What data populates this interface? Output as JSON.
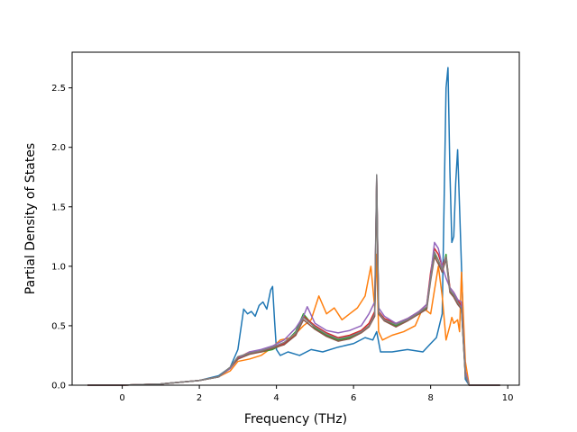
{
  "chart_data": {
    "type": "line",
    "title": "",
    "xlabel": "Frequency (THz)",
    "ylabel": "Partial Density of States",
    "xlim": [
      -1.3,
      10.3
    ],
    "ylim": [
      0.0,
      2.8
    ],
    "xticks": [
      0,
      2,
      4,
      6,
      8,
      10
    ],
    "xtick_labels": [
      "0",
      "2",
      "4",
      "6",
      "8",
      "10"
    ],
    "yticks": [
      0.0,
      0.5,
      1.0,
      1.5,
      2.0,
      2.5
    ],
    "ytick_labels": [
      "0.0",
      "0.5",
      "1.0",
      "1.5",
      "2.0",
      "2.5"
    ],
    "grid": false,
    "legend": "none",
    "series": [
      {
        "color": "#1f77b4",
        "x": [
          -0.9,
          0,
          1,
          2,
          2.5,
          2.8,
          3.0,
          3.15,
          3.25,
          3.35,
          3.45,
          3.55,
          3.65,
          3.75,
          3.85,
          3.9,
          3.95,
          4.0,
          4.1,
          4.3,
          4.6,
          4.9,
          5.2,
          5.6,
          6.0,
          6.3,
          6.5,
          6.6,
          6.7,
          7.0,
          7.4,
          7.8,
          8.0,
          8.15,
          8.3,
          8.4,
          8.45,
          8.5,
          8.55,
          8.6,
          8.65,
          8.7,
          8.75,
          8.8,
          8.85,
          8.9,
          9.0,
          9.8
        ],
        "y": [
          0,
          0.0,
          0.01,
          0.04,
          0.08,
          0.15,
          0.3,
          0.64,
          0.6,
          0.62,
          0.58,
          0.67,
          0.7,
          0.64,
          0.8,
          0.83,
          0.55,
          0.3,
          0.25,
          0.28,
          0.25,
          0.3,
          0.28,
          0.32,
          0.35,
          0.4,
          0.38,
          0.45,
          0.28,
          0.28,
          0.3,
          0.28,
          0.35,
          0.4,
          0.6,
          2.5,
          2.67,
          1.8,
          1.2,
          1.25,
          1.7,
          1.98,
          1.5,
          1.0,
          0.5,
          0.05,
          0,
          0
        ]
      },
      {
        "color": "#ff7f0e",
        "x": [
          -0.9,
          0,
          1,
          2,
          2.5,
          2.8,
          3.0,
          3.3,
          3.6,
          3.9,
          4.1,
          4.4,
          4.7,
          4.9,
          5.1,
          5.3,
          5.5,
          5.7,
          5.9,
          6.1,
          6.3,
          6.45,
          6.55,
          6.6,
          6.65,
          6.75,
          7.0,
          7.3,
          7.6,
          7.8,
          8.0,
          8.1,
          8.2,
          8.3,
          8.4,
          8.5,
          8.55,
          8.6,
          8.7,
          8.75,
          8.8,
          8.9,
          9.0,
          9.8
        ],
        "y": [
          0,
          0.0,
          0.01,
          0.04,
          0.07,
          0.12,
          0.2,
          0.22,
          0.25,
          0.32,
          0.38,
          0.4,
          0.5,
          0.55,
          0.75,
          0.6,
          0.65,
          0.55,
          0.6,
          0.65,
          0.75,
          1.0,
          0.65,
          1.1,
          0.45,
          0.38,
          0.42,
          0.45,
          0.5,
          0.65,
          0.6,
          0.8,
          1.0,
          0.75,
          0.38,
          0.5,
          0.57,
          0.52,
          0.55,
          0.45,
          0.95,
          0.2,
          0,
          0
        ]
      },
      {
        "color": "#2ca02c",
        "x": [
          -0.9,
          0,
          1,
          2,
          2.5,
          2.8,
          3.0,
          3.3,
          3.6,
          3.9,
          4.2,
          4.5,
          4.7,
          5.0,
          5.3,
          5.6,
          5.9,
          6.2,
          6.4,
          6.55,
          6.6,
          6.65,
          6.8,
          7.1,
          7.4,
          7.7,
          7.9,
          8.0,
          8.1,
          8.2,
          8.3,
          8.4,
          8.5,
          8.6,
          8.7,
          8.8,
          8.9,
          9.0,
          9.8
        ],
        "y": [
          0,
          0.0,
          0.01,
          0.04,
          0.07,
          0.15,
          0.22,
          0.27,
          0.28,
          0.3,
          0.35,
          0.45,
          0.6,
          0.48,
          0.42,
          0.38,
          0.4,
          0.45,
          0.5,
          0.6,
          1.72,
          0.6,
          0.55,
          0.5,
          0.55,
          0.6,
          0.65,
          0.9,
          1.1,
          1.05,
          0.95,
          1.1,
          0.8,
          0.75,
          0.7,
          0.65,
          0.1,
          0,
          0
        ]
      },
      {
        "color": "#d62728",
        "x": [
          -0.9,
          0,
          1,
          2,
          2.5,
          2.8,
          3.0,
          3.3,
          3.6,
          3.9,
          4.2,
          4.5,
          4.7,
          5.0,
          5.3,
          5.6,
          5.9,
          6.2,
          6.4,
          6.55,
          6.6,
          6.65,
          6.8,
          7.1,
          7.4,
          7.7,
          7.9,
          8.0,
          8.1,
          8.2,
          8.3,
          8.4,
          8.5,
          8.6,
          8.7,
          8.8,
          8.9,
          9.0,
          9.8
        ],
        "y": [
          0,
          0.0,
          0.01,
          0.04,
          0.07,
          0.15,
          0.23,
          0.28,
          0.28,
          0.32,
          0.35,
          0.42,
          0.58,
          0.5,
          0.44,
          0.4,
          0.42,
          0.46,
          0.52,
          0.62,
          1.74,
          0.62,
          0.56,
          0.52,
          0.56,
          0.62,
          0.68,
          0.95,
          1.15,
          1.1,
          1.0,
          1.08,
          0.82,
          0.78,
          0.72,
          0.66,
          0.1,
          0,
          0
        ]
      },
      {
        "color": "#9467bd",
        "x": [
          -0.9,
          0,
          1,
          2,
          2.5,
          2.8,
          3.0,
          3.3,
          3.6,
          3.9,
          4.2,
          4.5,
          4.7,
          4.8,
          5.0,
          5.3,
          5.6,
          5.9,
          6.2,
          6.4,
          6.55,
          6.6,
          6.65,
          6.8,
          7.1,
          7.4,
          7.7,
          7.9,
          8.0,
          8.1,
          8.2,
          8.3,
          8.4,
          8.5,
          8.6,
          8.7,
          8.8,
          8.9,
          9.0,
          9.8
        ],
        "y": [
          0,
          0.0,
          0.01,
          0.04,
          0.07,
          0.14,
          0.22,
          0.28,
          0.3,
          0.33,
          0.38,
          0.48,
          0.58,
          0.66,
          0.52,
          0.46,
          0.44,
          0.46,
          0.5,
          0.6,
          0.7,
          1.76,
          0.65,
          0.58,
          0.52,
          0.56,
          0.62,
          0.68,
          0.92,
          1.2,
          1.15,
          1.0,
          0.9,
          0.82,
          0.78,
          0.72,
          0.7,
          0.12,
          0,
          0
        ]
      },
      {
        "color": "#8c564b",
        "x": [
          -0.9,
          0,
          1,
          2,
          2.5,
          2.8,
          3.0,
          3.3,
          3.6,
          3.9,
          4.2,
          4.5,
          4.7,
          5.0,
          5.3,
          5.6,
          5.9,
          6.2,
          6.4,
          6.55,
          6.6,
          6.65,
          6.8,
          7.1,
          7.4,
          7.7,
          7.9,
          8.0,
          8.1,
          8.2,
          8.3,
          8.4,
          8.5,
          8.6,
          8.7,
          8.8,
          8.9,
          9.0,
          9.8
        ],
        "y": [
          0,
          0.0,
          0.01,
          0.04,
          0.07,
          0.15,
          0.22,
          0.26,
          0.28,
          0.31,
          0.34,
          0.42,
          0.55,
          0.47,
          0.41,
          0.37,
          0.39,
          0.44,
          0.49,
          0.58,
          1.7,
          0.6,
          0.54,
          0.49,
          0.54,
          0.6,
          0.64,
          0.88,
          1.08,
          1.02,
          0.95,
          1.06,
          0.78,
          0.74,
          0.68,
          0.64,
          0.08,
          0,
          0
        ]
      },
      {
        "color": "#7f7f7f",
        "x": [
          -0.9,
          0,
          1,
          2,
          2.5,
          2.8,
          3.0,
          3.3,
          3.6,
          3.9,
          4.2,
          4.5,
          4.7,
          5.0,
          5.3,
          5.6,
          5.9,
          6.2,
          6.4,
          6.55,
          6.6,
          6.65,
          6.8,
          7.1,
          7.4,
          7.7,
          7.9,
          8.0,
          8.1,
          8.2,
          8.3,
          8.4,
          8.5,
          8.6,
          8.7,
          8.8,
          8.9,
          9.0,
          9.8
        ],
        "y": [
          0,
          0.0,
          0.01,
          0.04,
          0.07,
          0.15,
          0.24,
          0.27,
          0.29,
          0.32,
          0.36,
          0.44,
          0.57,
          0.49,
          0.43,
          0.39,
          0.41,
          0.45,
          0.5,
          0.6,
          1.77,
          0.61,
          0.55,
          0.51,
          0.55,
          0.61,
          0.66,
          0.9,
          1.12,
          1.05,
          0.97,
          1.08,
          0.8,
          0.76,
          0.7,
          0.65,
          0.09,
          0,
          0
        ]
      }
    ]
  }
}
